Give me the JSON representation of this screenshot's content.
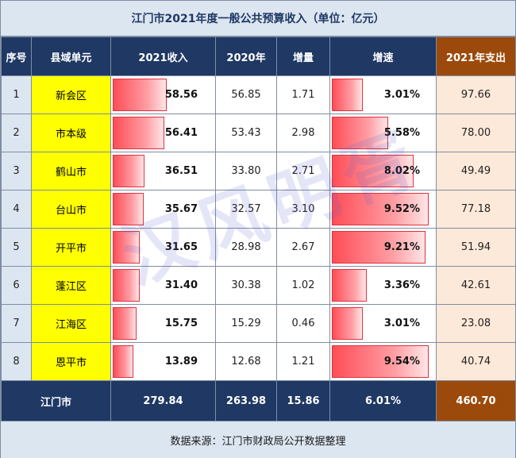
{
  "title": "江门市2021年度一般公共预算收入（单位：亿元）",
  "headers": {
    "idx": "序号",
    "unit": "县域单元",
    "rev2021": "2021收入",
    "rev2020": "2020年",
    "increase": "增量",
    "growth": "增速",
    "exp2021": "2021年支出"
  },
  "rows": [
    {
      "idx": "1",
      "name": "新会区",
      "rev2021": "58.56",
      "rev2021_level": 0.52,
      "rev2020": "56.85",
      "increase": "1.71",
      "growth": "3.01%",
      "growth_level": 0.29,
      "exp": "97.66"
    },
    {
      "idx": "2",
      "name": "市本级",
      "rev2021": "56.41",
      "rev2021_level": 0.5,
      "rev2020": "53.43",
      "increase": "2.98",
      "growth": "5.58%",
      "growth_level": 0.54,
      "exp": "78.00"
    },
    {
      "idx": "3",
      "name": "鹤山市",
      "rev2021": "36.51",
      "rev2021_level": 0.3,
      "rev2020": "33.80",
      "increase": "2.71",
      "growth": "8.02%",
      "growth_level": 0.79,
      "exp": "49.49"
    },
    {
      "idx": "4",
      "name": "台山市",
      "rev2021": "35.67",
      "rev2021_level": 0.29,
      "rev2020": "32.57",
      "increase": "3.10",
      "growth": "9.52%",
      "growth_level": 0.94,
      "exp": "77.18"
    },
    {
      "idx": "5",
      "name": "开平市",
      "rev2021": "31.65",
      "rev2021_level": 0.25,
      "rev2020": "28.98",
      "increase": "2.67",
      "growth": "9.21%",
      "growth_level": 0.91,
      "exp": "51.94"
    },
    {
      "idx": "6",
      "name": "蓬江区",
      "rev2021": "31.40",
      "rev2021_level": 0.25,
      "rev2020": "30.38",
      "increase": "1.02",
      "growth": "3.36%",
      "growth_level": 0.33,
      "exp": "42.61"
    },
    {
      "idx": "7",
      "name": "江海区",
      "rev2021": "15.75",
      "rev2021_level": 0.22,
      "rev2020": "15.29",
      "increase": "0.46",
      "growth": "3.01%",
      "growth_level": 0.29,
      "exp": "23.08"
    },
    {
      "idx": "8",
      "name": "恩平市",
      "rev2021": "13.89",
      "rev2021_level": 0.19,
      "rev2020": "12.68",
      "increase": "1.21",
      "growth": "9.54%",
      "growth_level": 0.94,
      "exp": "40.74"
    }
  ],
  "total": {
    "name": "江门市",
    "rev2021": "279.84",
    "rev2020": "263.98",
    "increase": "15.86",
    "growth": "6.01%",
    "exp": "460.70"
  },
  "source": "数据来源：江门市财政局公开数据整理",
  "watermark": "汉风明胥",
  "colors": {
    "header_bg": "#1f3864",
    "expense_header_bg": "#9c4a0c",
    "name_bg": "#ffff00",
    "expense_bg": "#fde9d9",
    "bar": "#ff4d57"
  }
}
